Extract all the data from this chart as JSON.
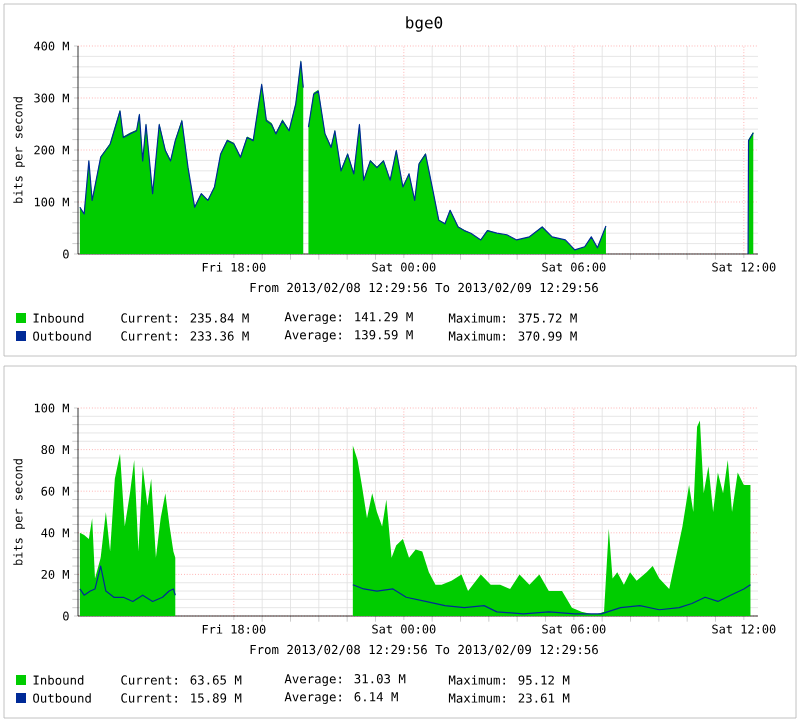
{
  "chart_data": [
    {
      "type": "area",
      "title": "bge0",
      "ylabel": "bits per second",
      "xlim": [
        "2013-02-08T12:30",
        "2013-02-09T12:30"
      ],
      "ylim": [
        0,
        400
      ],
      "xticks": [
        {
          "value": "2013-02-08T18:00",
          "label": "Fri 18:00"
        },
        {
          "value": "2013-02-09T00:00",
          "label": "Sat 00:00"
        },
        {
          "value": "2013-02-09T06:00",
          "label": "Sat 06:00"
        },
        {
          "value": "2013-02-09T12:00",
          "label": "Sat 12:00"
        }
      ],
      "yticks": [
        0,
        {
          "value": 100,
          "label": "100 M"
        },
        {
          "value": 200,
          "label": "200 M"
        },
        {
          "value": 300,
          "label": "300 M"
        },
        {
          "value": 400,
          "label": "400 M"
        }
      ],
      "grid": true,
      "legend": "bottom",
      "series": [
        {
          "name": "Inbound",
          "color": "#00cc00",
          "x": [
            "2013-02-08T12:34",
            "2013-02-08T12:43",
            "2013-02-08T12:53",
            "2013-02-08T13:00",
            "2013-02-08T13:18",
            "2013-02-08T13:38",
            "2013-02-08T13:59",
            "2013-02-08T14:06",
            "2013-02-08T14:20",
            "2013-02-08T14:34",
            "2013-02-08T14:40",
            "2013-02-08T14:47",
            "2013-02-08T14:54",
            "2013-02-08T15:08",
            "2013-02-08T15:22",
            "2013-02-08T15:35",
            "2013-02-08T15:46",
            "2013-02-08T15:56",
            "2013-02-08T16:10",
            "2013-02-08T16:23",
            "2013-02-08T16:37",
            "2013-02-08T16:51",
            "2013-02-08T17:05",
            "2013-02-08T17:19",
            "2013-02-08T17:32",
            "2013-02-08T17:46",
            "2013-02-08T18:00",
            "2013-02-08T18:14",
            "2013-02-08T18:28",
            "2013-02-08T18:41",
            "2013-02-08T18:59",
            "2013-02-08T19:09",
            "2013-02-08T19:20",
            "2013-02-08T19:29",
            "2013-02-08T19:43",
            "2013-02-08T19:57",
            "2013-02-08T20:11",
            "2013-02-08T20:22",
            "2013-02-08T20:27",
            "2013-02-08T20:31",
            "2013-02-08T20:38",
            "2013-02-08T20:49",
            "2013-02-08T20:59",
            "2013-02-08T21:13",
            "2013-02-08T21:26",
            "2013-02-08T21:34",
            "2013-02-08T21:47",
            "2013-02-08T22:01",
            "2013-02-08T22:14",
            "2013-02-08T22:26",
            "2013-02-08T22:35",
            "2013-02-08T22:49",
            "2013-02-08T23:03",
            "2013-02-08T23:17",
            "2013-02-08T23:31",
            "2013-02-08T23:44",
            "2013-02-08T23:58",
            "2013-02-09T00:11",
            "2013-02-09T00:23",
            "2013-02-09T00:32",
            "2013-02-09T00:46",
            "2013-02-09T01:00",
            "2013-02-09T01:14",
            "2013-02-09T01:27",
            "2013-02-09T01:38",
            "2013-02-09T01:55",
            "2013-02-09T02:08",
            "2013-02-09T02:22",
            "2013-02-09T02:43",
            "2013-02-09T02:57",
            "2013-02-09T03:17",
            "2013-02-09T03:38",
            "2013-02-09T03:59",
            "2013-02-09T04:26",
            "2013-02-09T04:53",
            "2013-02-09T05:14",
            "2013-02-09T05:42",
            "2013-02-09T06:02",
            "2013-02-09T06:23",
            "2013-02-09T06:37",
            "2013-02-09T06:50",
            "2013-02-09T07:08",
            "2013-02-09T07:12",
            "2013-02-09T12:09",
            "2013-02-09T12:10",
            "2013-02-09T12:20"
          ],
          "values": [
            91,
            78,
            181,
            104,
            188,
            213,
            278,
            226,
            233,
            239,
            271,
            181,
            252,
            117,
            252,
            201,
            181,
            220,
            259,
            168,
            91,
            117,
            104,
            130,
            194,
            220,
            214,
            188,
            226,
            220,
            329,
            259,
            252,
            233,
            259,
            239,
            291,
            374,
            323,
            null,
            246,
            310,
            316,
            233,
            207,
            239,
            162,
            194,
            156,
            252,
            143,
            181,
            168,
            181,
            143,
            201,
            130,
            156,
            104,
            175,
            194,
            130,
            66,
            59,
            85,
            53,
            46,
            40,
            27,
            46,
            40,
            37,
            27,
            33,
            53,
            33,
            27,
            8,
            14,
            33,
            12,
            55,
            null,
            0,
            220,
            235
          ]
        },
        {
          "name": "Outbound",
          "type": "line",
          "color": "#002a97",
          "x": [
            "2013-02-08T12:34",
            "2013-02-08T12:43",
            "2013-02-08T12:53",
            "2013-02-08T13:00",
            "2013-02-08T13:18",
            "2013-02-08T13:38",
            "2013-02-08T13:59",
            "2013-02-08T14:06",
            "2013-02-08T14:20",
            "2013-02-08T14:34",
            "2013-02-08T14:40",
            "2013-02-08T14:47",
            "2013-02-08T14:54",
            "2013-02-08T15:08",
            "2013-02-08T15:22",
            "2013-02-08T15:35",
            "2013-02-08T15:46",
            "2013-02-08T15:56",
            "2013-02-08T16:10",
            "2013-02-08T16:23",
            "2013-02-08T16:37",
            "2013-02-08T16:51",
            "2013-02-08T17:05",
            "2013-02-08T17:19",
            "2013-02-08T17:32",
            "2013-02-08T17:46",
            "2013-02-08T18:00",
            "2013-02-08T18:14",
            "2013-02-08T18:28",
            "2013-02-08T18:41",
            "2013-02-08T18:59",
            "2013-02-08T19:09",
            "2013-02-08T19:20",
            "2013-02-08T19:29",
            "2013-02-08T19:43",
            "2013-02-08T19:57",
            "2013-02-08T20:11",
            "2013-02-08T20:22",
            "2013-02-08T20:27",
            "2013-02-08T20:31",
            "2013-02-08T20:38",
            "2013-02-08T20:49",
            "2013-02-08T20:59",
            "2013-02-08T21:13",
            "2013-02-08T21:26",
            "2013-02-08T21:34",
            "2013-02-08T21:47",
            "2013-02-08T22:01",
            "2013-02-08T22:14",
            "2013-02-08T22:26",
            "2013-02-08T22:35",
            "2013-02-08T22:49",
            "2013-02-08T23:03",
            "2013-02-08T23:17",
            "2013-02-08T23:31",
            "2013-02-08T23:44",
            "2013-02-08T23:58",
            "2013-02-09T00:11",
            "2013-02-09T00:23",
            "2013-02-09T00:32",
            "2013-02-09T00:46",
            "2013-02-09T01:00",
            "2013-02-09T01:14",
            "2013-02-09T01:27",
            "2013-02-09T01:38",
            "2013-02-09T01:55",
            "2013-02-09T02:08",
            "2013-02-09T02:22",
            "2013-02-09T02:43",
            "2013-02-09T02:57",
            "2013-02-09T03:17",
            "2013-02-09T03:38",
            "2013-02-09T03:59",
            "2013-02-09T04:26",
            "2013-02-09T04:53",
            "2013-02-09T05:14",
            "2013-02-09T05:42",
            "2013-02-09T06:02",
            "2013-02-09T06:23",
            "2013-02-09T06:37",
            "2013-02-09T06:50",
            "2013-02-09T07:08",
            "2013-02-09T07:12",
            "2013-02-09T12:09",
            "2013-02-09T12:10",
            "2013-02-09T12:20"
          ],
          "values": [
            90,
            77,
            179,
            103,
            186,
            211,
            275,
            224,
            231,
            237,
            268,
            179,
            249,
            116,
            249,
            199,
            179,
            218,
            256,
            166,
            90,
            116,
            103,
            129,
            192,
            218,
            212,
            186,
            224,
            218,
            326,
            256,
            249,
            231,
            256,
            237,
            288,
            370,
            320,
            null,
            244,
            307,
            313,
            231,
            205,
            237,
            160,
            192,
            154,
            249,
            142,
            179,
            166,
            179,
            142,
            199,
            129,
            154,
            103,
            173,
            192,
            129,
            65,
            58,
            84,
            52,
            45,
            40,
            27,
            45,
            40,
            37,
            27,
            33,
            52,
            33,
            27,
            8,
            14,
            33,
            12,
            54,
            null,
            0,
            218,
            233
          ]
        }
      ],
      "annotations": [
        "From 2013/02/08 12:29:56 To 2013/02/09 12:29:56",
        "Current:  235.84 M",
        "Average:  141.29 M",
        "Maximum:  375.72 M",
        "Current:  233.36 M",
        "Average:  139.59 M",
        "Maximum:  370.99 M"
      ]
    },
    {
      "type": "area",
      "ylabel": "bits per second",
      "xlim": [
        "2013-02-08T12:30",
        "2013-02-09T12:30"
      ],
      "ylim": [
        0,
        100
      ],
      "xticks": [
        {
          "value": "2013-02-08T18:00",
          "label": "Fri 18:00"
        },
        {
          "value": "2013-02-09T00:00",
          "label": "Sat 00:00"
        },
        {
          "value": "2013-02-09T06:00",
          "label": "Sat 06:00"
        },
        {
          "value": "2013-02-09T12:00",
          "label": "Sat 12:00"
        }
      ],
      "yticks": [
        0,
        {
          "value": 20,
          "label": "20 M"
        },
        {
          "value": 40,
          "label": "40 M"
        },
        {
          "value": 60,
          "label": "60 M"
        },
        {
          "value": 80,
          "label": "80 M"
        },
        {
          "value": 100,
          "label": "100 M"
        }
      ],
      "grid": true,
      "legend": "bottom",
      "series": [
        {
          "name": "Inbound",
          "color": "#00cc00",
          "x": [
            "2013-02-08T12:34",
            "2013-02-08T12:43",
            "2013-02-08T12:53",
            "2013-02-08T13:00",
            "2013-02-08T13:06",
            "2013-02-08T13:18",
            "2013-02-08T13:29",
            "2013-02-08T13:38",
            "2013-02-08T13:48",
            "2013-02-08T13:59",
            "2013-02-08T14:09",
            "2013-02-08T14:20",
            "2013-02-08T14:29",
            "2013-02-08T14:38",
            "2013-02-08T14:47",
            "2013-02-08T14:57",
            "2013-02-08T15:05",
            "2013-02-08T15:15",
            "2013-02-08T15:25",
            "2013-02-08T15:35",
            "2013-02-08T15:44",
            "2013-02-08T15:52",
            "2013-02-08T15:56",
            "2013-02-08T16:00",
            "2013-02-08T22:12",
            "2013-02-08T22:22",
            "2013-02-08T22:31",
            "2013-02-08T22:42",
            "2013-02-08T22:53",
            "2013-02-08T23:03",
            "2013-02-08T23:14",
            "2013-02-08T23:23",
            "2013-02-08T23:34",
            "2013-02-08T23:44",
            "2013-02-08T23:58",
            "2013-02-09T00:11",
            "2013-02-09T00:25",
            "2013-02-09T00:39",
            "2013-02-09T00:53",
            "2013-02-09T01:07",
            "2013-02-09T01:20",
            "2013-02-09T01:41",
            "2013-02-09T02:02",
            "2013-02-09T02:16",
            "2013-02-09T02:43",
            "2013-02-09T03:04",
            "2013-02-09T03:24",
            "2013-02-09T03:45",
            "2013-02-09T04:05",
            "2013-02-09T04:26",
            "2013-02-09T04:47",
            "2013-02-09T05:07",
            "2013-02-09T05:35",
            "2013-02-09T05:56",
            "2013-02-09T06:16",
            "2013-02-09T06:37",
            "2013-02-09T06:50",
            "2013-02-09T07:04",
            "2013-02-09T07:14",
            "2013-02-09T07:22",
            "2013-02-09T07:32",
            "2013-02-09T07:46",
            "2013-02-09T07:59",
            "2013-02-09T08:13",
            "2013-02-09T08:34",
            "2013-02-09T08:47",
            "2013-02-09T09:01",
            "2013-02-09T09:22",
            "2013-02-09T09:36",
            "2013-02-09T09:50",
            "2013-02-09T10:04",
            "2013-02-09T10:13",
            "2013-02-09T10:21",
            "2013-02-09T10:27",
            "2013-02-09T10:35",
            "2013-02-09T10:45",
            "2013-02-09T10:55",
            "2013-02-09T11:05",
            "2013-02-09T11:16",
            "2013-02-09T11:26",
            "2013-02-09T11:35",
            "2013-02-09T11:47",
            "2013-02-09T12:00",
            "2013-02-09T12:14"
          ],
          "values": [
            40,
            39,
            37,
            47,
            18,
            28,
            50,
            31,
            66,
            78,
            43,
            59,
            75,
            31,
            72,
            53,
            66,
            28,
            47,
            59,
            43,
            31,
            28,
            null,
            82,
            75,
            63,
            47,
            59,
            50,
            43,
            56,
            28,
            34,
            37,
            28,
            32,
            31,
            21,
            15,
            15,
            17,
            20,
            12,
            20,
            15,
            15,
            13,
            20,
            15,
            20,
            12,
            12,
            4,
            2,
            1,
            1,
            2,
            42,
            18,
            21,
            15,
            21,
            17,
            21,
            24,
            18,
            13,
            28,
            43,
            63,
            50,
            91,
            94,
            59,
            72,
            50,
            69,
            59,
            75,
            50,
            69,
            63,
            63
          ]
        },
        {
          "name": "Outbound",
          "type": "line",
          "color": "#002a97",
          "x": [
            "2013-02-08T12:34",
            "2013-02-08T12:43",
            "2013-02-08T12:56",
            "2013-02-08T13:06",
            "2013-02-08T13:18",
            "2013-02-08T13:29",
            "2013-02-08T13:46",
            "2013-02-08T14:06",
            "2013-02-08T14:26",
            "2013-02-08T14:47",
            "2013-02-08T15:08",
            "2013-02-08T15:29",
            "2013-02-08T15:43",
            "2013-02-08T15:52",
            "2013-02-08T15:56",
            "2013-02-08T16:00",
            "2013-02-08T22:12",
            "2013-02-08T22:35",
            "2013-02-08T23:03",
            "2013-02-08T23:37",
            "2013-02-09T00:05",
            "2013-02-09T00:46",
            "2013-02-09T01:27",
            "2013-02-09T02:08",
            "2013-02-09T02:50",
            "2013-02-09T03:17",
            "2013-02-09T04:13",
            "2013-02-09T05:07",
            "2013-02-09T06:02",
            "2013-02-09T06:58",
            "2013-02-09T07:39",
            "2013-02-09T08:20",
            "2013-02-09T09:01",
            "2013-02-09T09:43",
            "2013-02-09T10:10",
            "2013-02-09T10:38",
            "2013-02-09T11:05",
            "2013-02-09T11:32",
            "2013-02-09T12:00",
            "2013-02-09T12:14"
          ],
          "values": [
            13,
            10,
            12,
            13,
            24,
            12,
            9,
            9,
            7,
            10,
            7,
            9,
            12,
            13,
            10,
            null,
            15,
            13,
            12,
            13,
            9,
            7,
            5,
            4,
            5,
            2,
            1,
            2,
            1,
            1,
            4,
            5,
            3,
            4,
            6,
            9,
            7,
            10,
            13,
            15
          ]
        }
      ],
      "annotations": [
        "From 2013/02/08 12:29:56 To 2013/02/09 12:29:56",
        "Current:   63.65 M",
        "Average:   31.03 M",
        "Maximum:   95.12 M",
        "Current:   15.89 M",
        "Average:    6.14 M",
        "Maximum:   23.61 M"
      ]
    }
  ]
}
